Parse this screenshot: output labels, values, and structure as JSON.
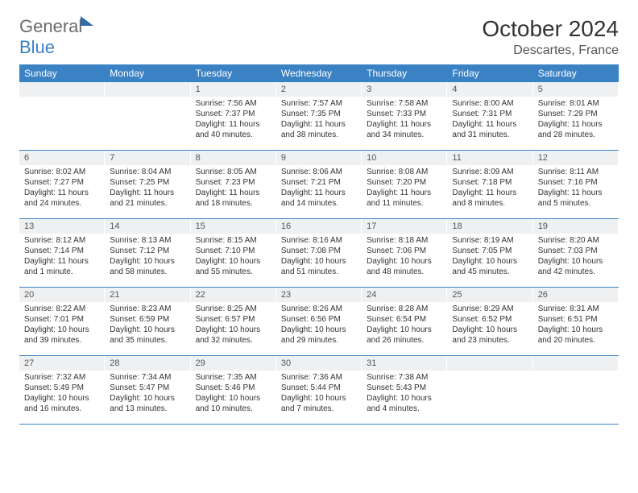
{
  "brand": {
    "general": "General",
    "blue": "Blue"
  },
  "title": "October 2024",
  "location": "Descartes, France",
  "colors": {
    "header_bg": "#3b82c4",
    "header_text": "#ffffff",
    "daynum_bg": "#eef0f2",
    "border": "#3b82c4",
    "text": "#333333"
  },
  "weekdays": [
    "Sunday",
    "Monday",
    "Tuesday",
    "Wednesday",
    "Thursday",
    "Friday",
    "Saturday"
  ],
  "weeks": [
    [
      {
        "n": "",
        "sr": "",
        "ss": "",
        "dl": ""
      },
      {
        "n": "",
        "sr": "",
        "ss": "",
        "dl": ""
      },
      {
        "n": "1",
        "sr": "Sunrise: 7:56 AM",
        "ss": "Sunset: 7:37 PM",
        "dl": "Daylight: 11 hours and 40 minutes."
      },
      {
        "n": "2",
        "sr": "Sunrise: 7:57 AM",
        "ss": "Sunset: 7:35 PM",
        "dl": "Daylight: 11 hours and 38 minutes."
      },
      {
        "n": "3",
        "sr": "Sunrise: 7:58 AM",
        "ss": "Sunset: 7:33 PM",
        "dl": "Daylight: 11 hours and 34 minutes."
      },
      {
        "n": "4",
        "sr": "Sunrise: 8:00 AM",
        "ss": "Sunset: 7:31 PM",
        "dl": "Daylight: 11 hours and 31 minutes."
      },
      {
        "n": "5",
        "sr": "Sunrise: 8:01 AM",
        "ss": "Sunset: 7:29 PM",
        "dl": "Daylight: 11 hours and 28 minutes."
      }
    ],
    [
      {
        "n": "6",
        "sr": "Sunrise: 8:02 AM",
        "ss": "Sunset: 7:27 PM",
        "dl": "Daylight: 11 hours and 24 minutes."
      },
      {
        "n": "7",
        "sr": "Sunrise: 8:04 AM",
        "ss": "Sunset: 7:25 PM",
        "dl": "Daylight: 11 hours and 21 minutes."
      },
      {
        "n": "8",
        "sr": "Sunrise: 8:05 AM",
        "ss": "Sunset: 7:23 PM",
        "dl": "Daylight: 11 hours and 18 minutes."
      },
      {
        "n": "9",
        "sr": "Sunrise: 8:06 AM",
        "ss": "Sunset: 7:21 PM",
        "dl": "Daylight: 11 hours and 14 minutes."
      },
      {
        "n": "10",
        "sr": "Sunrise: 8:08 AM",
        "ss": "Sunset: 7:20 PM",
        "dl": "Daylight: 11 hours and 11 minutes."
      },
      {
        "n": "11",
        "sr": "Sunrise: 8:09 AM",
        "ss": "Sunset: 7:18 PM",
        "dl": "Daylight: 11 hours and 8 minutes."
      },
      {
        "n": "12",
        "sr": "Sunrise: 8:11 AM",
        "ss": "Sunset: 7:16 PM",
        "dl": "Daylight: 11 hours and 5 minutes."
      }
    ],
    [
      {
        "n": "13",
        "sr": "Sunrise: 8:12 AM",
        "ss": "Sunset: 7:14 PM",
        "dl": "Daylight: 11 hours and 1 minute."
      },
      {
        "n": "14",
        "sr": "Sunrise: 8:13 AM",
        "ss": "Sunset: 7:12 PM",
        "dl": "Daylight: 10 hours and 58 minutes."
      },
      {
        "n": "15",
        "sr": "Sunrise: 8:15 AM",
        "ss": "Sunset: 7:10 PM",
        "dl": "Daylight: 10 hours and 55 minutes."
      },
      {
        "n": "16",
        "sr": "Sunrise: 8:16 AM",
        "ss": "Sunset: 7:08 PM",
        "dl": "Daylight: 10 hours and 51 minutes."
      },
      {
        "n": "17",
        "sr": "Sunrise: 8:18 AM",
        "ss": "Sunset: 7:06 PM",
        "dl": "Daylight: 10 hours and 48 minutes."
      },
      {
        "n": "18",
        "sr": "Sunrise: 8:19 AM",
        "ss": "Sunset: 7:05 PM",
        "dl": "Daylight: 10 hours and 45 minutes."
      },
      {
        "n": "19",
        "sr": "Sunrise: 8:20 AM",
        "ss": "Sunset: 7:03 PM",
        "dl": "Daylight: 10 hours and 42 minutes."
      }
    ],
    [
      {
        "n": "20",
        "sr": "Sunrise: 8:22 AM",
        "ss": "Sunset: 7:01 PM",
        "dl": "Daylight: 10 hours and 39 minutes."
      },
      {
        "n": "21",
        "sr": "Sunrise: 8:23 AM",
        "ss": "Sunset: 6:59 PM",
        "dl": "Daylight: 10 hours and 35 minutes."
      },
      {
        "n": "22",
        "sr": "Sunrise: 8:25 AM",
        "ss": "Sunset: 6:57 PM",
        "dl": "Daylight: 10 hours and 32 minutes."
      },
      {
        "n": "23",
        "sr": "Sunrise: 8:26 AM",
        "ss": "Sunset: 6:56 PM",
        "dl": "Daylight: 10 hours and 29 minutes."
      },
      {
        "n": "24",
        "sr": "Sunrise: 8:28 AM",
        "ss": "Sunset: 6:54 PM",
        "dl": "Daylight: 10 hours and 26 minutes."
      },
      {
        "n": "25",
        "sr": "Sunrise: 8:29 AM",
        "ss": "Sunset: 6:52 PM",
        "dl": "Daylight: 10 hours and 23 minutes."
      },
      {
        "n": "26",
        "sr": "Sunrise: 8:31 AM",
        "ss": "Sunset: 6:51 PM",
        "dl": "Daylight: 10 hours and 20 minutes."
      }
    ],
    [
      {
        "n": "27",
        "sr": "Sunrise: 7:32 AM",
        "ss": "Sunset: 5:49 PM",
        "dl": "Daylight: 10 hours and 16 minutes."
      },
      {
        "n": "28",
        "sr": "Sunrise: 7:34 AM",
        "ss": "Sunset: 5:47 PM",
        "dl": "Daylight: 10 hours and 13 minutes."
      },
      {
        "n": "29",
        "sr": "Sunrise: 7:35 AM",
        "ss": "Sunset: 5:46 PM",
        "dl": "Daylight: 10 hours and 10 minutes."
      },
      {
        "n": "30",
        "sr": "Sunrise: 7:36 AM",
        "ss": "Sunset: 5:44 PM",
        "dl": "Daylight: 10 hours and 7 minutes."
      },
      {
        "n": "31",
        "sr": "Sunrise: 7:38 AM",
        "ss": "Sunset: 5:43 PM",
        "dl": "Daylight: 10 hours and 4 minutes."
      },
      {
        "n": "",
        "sr": "",
        "ss": "",
        "dl": ""
      },
      {
        "n": "",
        "sr": "",
        "ss": "",
        "dl": ""
      }
    ]
  ]
}
